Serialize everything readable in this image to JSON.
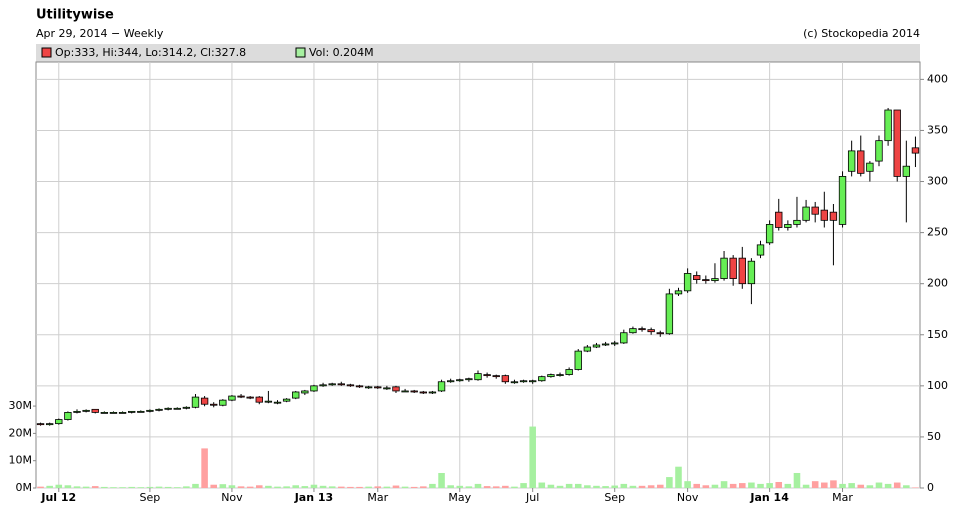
{
  "chart_data": {
    "type": "candlestick",
    "title": "Utilitywise",
    "subtitle": "Apr 29, 2014 − Weekly",
    "credit": "(c) Stockopedia 2014",
    "ohlc_legend": "Op:333, Hi:344, Lo:314.2, Cl:327.8",
    "volume_legend": "Vol: 0.204M",
    "up_color": "#66ee55",
    "down_color": "#ee4444",
    "volume_up_color": "#a6f0a0",
    "volume_down_color": "#ffa0a0",
    "grid": true,
    "categories": [
      null,
      null,
      "Jul 12",
      null,
      null,
      null,
      null,
      null,
      null,
      null,
      null,
      null,
      "Sep",
      null,
      null,
      null,
      null,
      null,
      null,
      null,
      null,
      "Nov",
      null,
      null,
      null,
      null,
      null,
      null,
      null,
      null,
      "Jan 13",
      null,
      null,
      null,
      null,
      null,
      null,
      "Mar",
      null,
      null,
      null,
      null,
      null,
      null,
      null,
      null,
      "May",
      null,
      null,
      null,
      null,
      null,
      null,
      null,
      "Jul",
      null,
      null,
      null,
      null,
      null,
      null,
      null,
      null,
      "Sep",
      null,
      null,
      null,
      null,
      null,
      null,
      null,
      "Nov",
      null,
      null,
      null,
      null,
      null,
      null,
      null,
      null,
      "Jan 14",
      null,
      null,
      null,
      null,
      null,
      null,
      null,
      "Mar",
      null,
      null,
      null,
      null,
      null,
      null,
      null,
      null
    ],
    "open": [
      63,
      62,
      63,
      67,
      74,
      75,
      77,
      74,
      74,
      74,
      74,
      75,
      75,
      76,
      77,
      78,
      78,
      79,
      88,
      82,
      81,
      86,
      90,
      89,
      89,
      84,
      84,
      85,
      88,
      93,
      95,
      100,
      101,
      102,
      101,
      100,
      99,
      99,
      98,
      99,
      95,
      95,
      94,
      93,
      95,
      104,
      105,
      106,
      106,
      111,
      110,
      110,
      104,
      104,
      104,
      105,
      109,
      111,
      111,
      116,
      134,
      138,
      140,
      141,
      142,
      152,
      156,
      155,
      152,
      151,
      190,
      193,
      208,
      204,
      203,
      205,
      225,
      225,
      200,
      228,
      240,
      270,
      255,
      258,
      262,
      275,
      272,
      270,
      258,
      310,
      330,
      310,
      320,
      340,
      370,
      305,
      333
    ],
    "high": [
      64,
      64,
      68,
      75,
      77,
      77,
      77,
      75,
      75,
      75,
      75,
      76,
      77,
      78,
      79,
      79,
      80,
      92,
      90,
      84,
      87,
      91,
      92,
      90,
      90,
      95,
      86,
      88,
      95,
      96,
      101,
      103,
      103,
      104,
      102,
      101,
      100,
      100,
      100,
      100,
      97,
      96,
      95,
      95,
      106,
      107,
      107,
      108,
      115,
      113,
      111,
      111,
      106,
      106,
      106,
      110,
      112,
      113,
      118,
      136,
      140,
      142,
      143,
      144,
      155,
      158,
      158,
      157,
      154,
      195,
      196,
      215,
      212,
      208,
      220,
      232,
      228,
      236,
      225,
      242,
      262,
      283,
      262,
      285,
      282,
      280,
      290,
      278,
      310,
      340,
      345,
      320,
      345,
      372,
      370,
      340,
      344
    ],
    "low": [
      61,
      61,
      62,
      66,
      73,
      74,
      73,
      73,
      73,
      73,
      73,
      74,
      74,
      75,
      76,
      77,
      77,
      78,
      80,
      79,
      80,
      85,
      88,
      87,
      82,
      83,
      82,
      84,
      87,
      91,
      94,
      99,
      100,
      100,
      99,
      98,
      97,
      97,
      96,
      93,
      94,
      93,
      92,
      92,
      94,
      103,
      104,
      104,
      105,
      108,
      107,
      102,
      102,
      103,
      102,
      104,
      108,
      109,
      110,
      115,
      133,
      137,
      139,
      139,
      141,
      151,
      153,
      150,
      148,
      150,
      188,
      191,
      200,
      200,
      201,
      203,
      198,
      195,
      180,
      225,
      238,
      252,
      252,
      255,
      260,
      260,
      255,
      218,
      255,
      305,
      305,
      300,
      315,
      335,
      300,
      260,
      314.2
    ],
    "close": [
      62,
      63,
      67,
      74,
      75,
      76,
      74,
      74,
      74,
      74,
      75,
      75,
      76,
      77,
      78,
      78,
      79,
      89,
      82,
      81,
      86,
      90,
      89,
      88,
      84,
      85,
      84,
      87,
      94,
      95,
      100,
      101,
      102,
      101,
      100,
      99,
      99,
      98,
      98,
      95,
      95,
      94,
      93,
      94,
      104,
      105,
      106,
      107,
      112,
      110,
      109,
      104,
      104,
      105,
      105,
      109,
      111,
      111,
      116,
      134,
      138,
      140,
      141,
      142,
      152,
      156,
      155,
      153,
      151,
      190,
      193,
      210,
      204,
      203,
      205,
      225,
      205,
      200,
      222,
      238,
      258,
      255,
      258,
      262,
      275,
      268,
      262,
      262,
      305,
      330,
      308,
      318,
      340,
      370,
      305,
      315,
      327.8
    ],
    "volume": [
      0.5,
      0.8,
      1.2,
      1.0,
      0.6,
      0.5,
      0.7,
      0.4,
      0.3,
      0.3,
      0.4,
      0.3,
      0.4,
      0.5,
      0.4,
      0.3,
      0.6,
      1.5,
      14.5,
      1.2,
      1.4,
      1.0,
      0.6,
      0.5,
      1.0,
      0.8,
      0.5,
      0.6,
      1.0,
      0.7,
      1.2,
      0.8,
      0.6,
      0.5,
      0.4,
      0.4,
      0.5,
      0.6,
      0.5,
      0.9,
      0.5,
      0.4,
      0.6,
      1.5,
      5.5,
      1.0,
      0.8,
      0.6,
      1.5,
      0.7,
      0.6,
      0.8,
      0.5,
      1.8,
      22.5,
      2.0,
      1.2,
      0.8,
      1.5,
      1.5,
      1.0,
      0.8,
      0.7,
      0.9,
      1.5,
      0.8,
      0.8,
      1.0,
      1.2,
      4.0,
      7.8,
      2.5,
      1.5,
      1.0,
      1.2,
      2.5,
      1.5,
      1.8,
      2.0,
      1.5,
      1.8,
      2.2,
      1.5,
      5.5,
      1.2,
      2.5,
      2.0,
      2.8,
      1.5,
      1.8,
      1.2,
      1.0,
      2.0,
      1.5,
      2.0,
      1.0,
      0.204
    ],
    "ylim": [
      0,
      417
    ],
    "yticks": [
      0,
      50,
      100,
      150,
      200,
      250,
      300,
      350,
      400
    ],
    "y2lim": [
      0,
      156
    ],
    "y2ticks": [
      {
        "value": 0,
        "label": "0M"
      },
      {
        "value": 10,
        "label": "10M"
      },
      {
        "value": 20,
        "label": "20M"
      },
      {
        "value": 30,
        "label": "30M"
      }
    ]
  }
}
